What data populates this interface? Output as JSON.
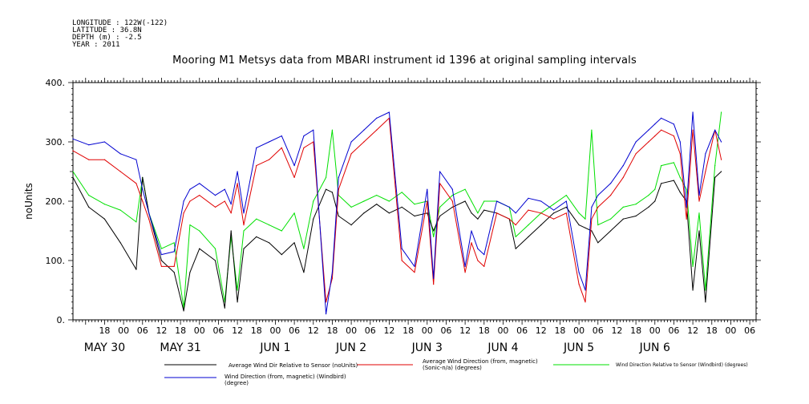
{
  "header": {
    "longitude": "LONGITUDE : 122W(-122)",
    "latitude": "LATITUDE : 36.8N",
    "depth": "DEPTH (m) : -2.5",
    "year": "YEAR : 2011"
  },
  "chart_data": {
    "type": "line",
    "title": "Mooring M1 Metsys data from MBARI instrument id 1396 at original sampling intervals",
    "ylabel": "noUnits",
    "ylim": [
      0,
      400
    ],
    "yticks": [
      0,
      100,
      200,
      300,
      400
    ],
    "ytick_labels": [
      "0.",
      "100.",
      "200.",
      "300.",
      "400."
    ],
    "xlim_hours": [
      -10,
      206
    ],
    "hour_ticks": [
      {
        "h": 0,
        "label": "18"
      },
      {
        "h": 6,
        "label": "00"
      },
      {
        "h": 12,
        "label": "06"
      },
      {
        "h": 18,
        "label": "12"
      },
      {
        "h": 24,
        "label": "18"
      },
      {
        "h": 30,
        "label": "00"
      },
      {
        "h": 36,
        "label": "06"
      },
      {
        "h": 42,
        "label": "12"
      },
      {
        "h": 48,
        "label": "18"
      },
      {
        "h": 54,
        "label": "00"
      },
      {
        "h": 60,
        "label": "06"
      },
      {
        "h": 66,
        "label": "12"
      },
      {
        "h": 72,
        "label": "18"
      },
      {
        "h": 78,
        "label": "00"
      },
      {
        "h": 84,
        "label": "06"
      },
      {
        "h": 90,
        "label": "12"
      },
      {
        "h": 96,
        "label": "18"
      },
      {
        "h": 102,
        "label": "00"
      },
      {
        "h": 108,
        "label": "06"
      },
      {
        "h": 114,
        "label": "12"
      },
      {
        "h": 120,
        "label": "18"
      },
      {
        "h": 126,
        "label": "00"
      },
      {
        "h": 132,
        "label": "06"
      },
      {
        "h": 138,
        "label": "12"
      },
      {
        "h": 144,
        "label": "18"
      },
      {
        "h": 150,
        "label": "00"
      },
      {
        "h": 156,
        "label": "06"
      },
      {
        "h": 162,
        "label": "12"
      },
      {
        "h": 168,
        "label": "18"
      },
      {
        "h": 174,
        "label": "00"
      },
      {
        "h": 180,
        "label": "06"
      },
      {
        "h": 186,
        "label": "12"
      },
      {
        "h": 192,
        "label": "18"
      },
      {
        "h": 198,
        "label": "00"
      },
      {
        "h": 204,
        "label": "06"
      }
    ],
    "day_labels": [
      {
        "h": 0,
        "label": "MAY 30"
      },
      {
        "h": 24,
        "label": "MAY 31"
      },
      {
        "h": 54,
        "label": "JUN  1"
      },
      {
        "h": 78,
        "label": "JUN  2"
      },
      {
        "h": 102,
        "label": "JUN  3"
      },
      {
        "h": 126,
        "label": "JUN  4"
      },
      {
        "h": 150,
        "label": "JUN  5"
      },
      {
        "h": 174,
        "label": "JUN  6"
      }
    ],
    "series": [
      {
        "name": "Average Wind Dir Relative to Sensor (noUnits)",
        "color": "#000000",
        "x": [
          -10,
          -5,
          0,
          5,
          10,
          12,
          14,
          18,
          22,
          25,
          27,
          30,
          35,
          38,
          40,
          42,
          44,
          48,
          52,
          56,
          60,
          63,
          66,
          70,
          72,
          74,
          78,
          82,
          86,
          90,
          94,
          98,
          102,
          104,
          106,
          110,
          114,
          116,
          118,
          120,
          124,
          128,
          130,
          134,
          138,
          142,
          146,
          150,
          152,
          154,
          156,
          160,
          164,
          168,
          172,
          174,
          176,
          180,
          182,
          184,
          186,
          188,
          190,
          193,
          195
        ],
        "y": [
          240,
          190,
          170,
          130,
          85,
          240,
          180,
          100,
          80,
          15,
          80,
          120,
          100,
          20,
          150,
          30,
          120,
          140,
          130,
          110,
          130,
          80,
          170,
          220,
          215,
          175,
          160,
          180,
          195,
          180,
          190,
          175,
          180,
          150,
          175,
          190,
          200,
          180,
          170,
          185,
          180,
          170,
          120,
          140,
          160,
          180,
          190,
          160,
          155,
          150,
          130,
          150,
          170,
          175,
          190,
          200,
          230,
          235,
          215,
          200,
          50,
          150,
          30,
          240,
          250
        ]
      },
      {
        "name": "Average Wind Direction (from, magnetic) (Sonic-n/a) (degrees)",
        "color": "#e00000",
        "x": [
          -10,
          -5,
          0,
          5,
          10,
          12,
          14,
          18,
          22,
          25,
          27,
          30,
          35,
          38,
          40,
          42,
          44,
          48,
          52,
          56,
          60,
          63,
          66,
          70,
          72,
          74,
          78,
          82,
          86,
          90,
          94,
          98,
          102,
          104,
          106,
          110,
          114,
          116,
          118,
          120,
          124,
          128,
          130,
          134,
          138,
          142,
          146,
          150,
          152,
          154,
          156,
          160,
          164,
          168,
          172,
          174,
          176,
          180,
          182,
          184,
          186,
          188,
          190,
          193,
          195
        ],
        "y": [
          285,
          270,
          270,
          250,
          230,
          200,
          170,
          90,
          90,
          180,
          200,
          210,
          190,
          200,
          180,
          230,
          160,
          260,
          270,
          290,
          240,
          290,
          300,
          30,
          70,
          220,
          280,
          300,
          320,
          340,
          100,
          80,
          200,
          60,
          230,
          200,
          80,
          130,
          100,
          90,
          180,
          170,
          160,
          185,
          180,
          170,
          180,
          60,
          30,
          170,
          190,
          210,
          240,
          280,
          300,
          310,
          320,
          310,
          280,
          170,
          320,
          200,
          250,
          320,
          270
        ]
      },
      {
        "name": "Wind Direction Relative to Sensor (Windbird) (degrees)",
        "color": "#00e000",
        "x": [
          -10,
          -5,
          0,
          5,
          10,
          12,
          14,
          18,
          22,
          25,
          27,
          30,
          35,
          38,
          40,
          42,
          44,
          48,
          52,
          56,
          60,
          63,
          66,
          70,
          72,
          74,
          78,
          82,
          86,
          90,
          94,
          98,
          102,
          104,
          106,
          110,
          114,
          116,
          118,
          120,
          124,
          128,
          130,
          134,
          138,
          142,
          146,
          150,
          152,
          154,
          156,
          160,
          164,
          168,
          172,
          174,
          176,
          180,
          182,
          184,
          186,
          188,
          190,
          193,
          195
        ],
        "y": [
          250,
          210,
          195,
          185,
          165,
          240,
          180,
          120,
          130,
          20,
          160,
          150,
          120,
          30,
          140,
          50,
          150,
          170,
          160,
          150,
          180,
          120,
          200,
          240,
          320,
          210,
          190,
          200,
          210,
          200,
          215,
          195,
          200,
          140,
          190,
          210,
          220,
          200,
          180,
          200,
          200,
          190,
          140,
          160,
          180,
          195,
          210,
          180,
          170,
          320,
          160,
          170,
          190,
          195,
          210,
          220,
          260,
          265,
          240,
          220,
          90,
          180,
          50,
          260,
          350
        ]
      },
      {
        "name": "Wind Direction (from, magnetic) (Windbird) (degree)",
        "color": "#0000d0",
        "x": [
          -10,
          -5,
          0,
          5,
          10,
          12,
          14,
          18,
          22,
          25,
          27,
          30,
          35,
          38,
          40,
          42,
          44,
          48,
          52,
          56,
          60,
          63,
          66,
          70,
          72,
          74,
          78,
          82,
          86,
          90,
          94,
          98,
          102,
          104,
          106,
          110,
          114,
          116,
          118,
          120,
          124,
          128,
          130,
          134,
          138,
          142,
          146,
          150,
          152,
          154,
          156,
          160,
          164,
          168,
          172,
          174,
          176,
          180,
          182,
          184,
          186,
          188,
          190,
          193,
          195
        ],
        "y": [
          305,
          295,
          300,
          280,
          270,
          220,
          180,
          110,
          115,
          200,
          220,
          230,
          210,
          220,
          195,
          250,
          180,
          290,
          300,
          310,
          260,
          310,
          320,
          10,
          80,
          240,
          300,
          320,
          340,
          350,
          120,
          90,
          220,
          70,
          250,
          220,
          90,
          150,
          120,
          110,
          200,
          190,
          180,
          205,
          200,
          185,
          200,
          80,
          50,
          190,
          210,
          230,
          260,
          300,
          320,
          330,
          340,
          330,
          300,
          190,
          350,
          210,
          280,
          320,
          300
        ]
      }
    ]
  }
}
